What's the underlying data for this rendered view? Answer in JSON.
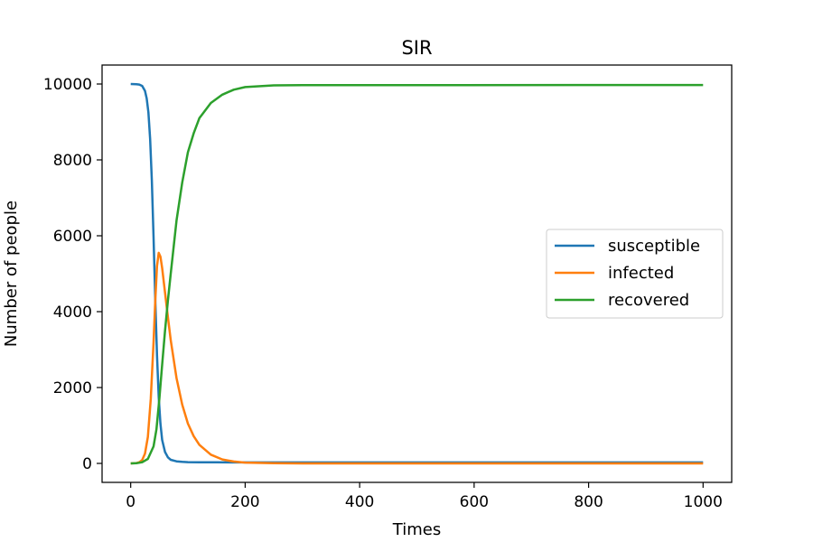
{
  "chart_data": {
    "type": "line",
    "title": "SIR",
    "xlabel": "Times",
    "ylabel": "Number of people",
    "xlim": [
      -50,
      1050
    ],
    "ylim": [
      -500,
      10500
    ],
    "xticks": [
      0,
      200,
      400,
      600,
      800,
      1000
    ],
    "yticks": [
      0,
      2000,
      4000,
      6000,
      8000,
      10000
    ],
    "xtick_labels": [
      "0",
      "200",
      "400",
      "600",
      "800",
      "1000"
    ],
    "ytick_labels": [
      "0",
      "2000",
      "4000",
      "6000",
      "8000",
      "10000"
    ],
    "grid": false,
    "legend_position": "center-right",
    "series": [
      {
        "name": "susceptible",
        "color": "#1f77b4",
        "x": [
          0,
          5,
          10,
          15,
          20,
          25,
          28,
          31,
          34,
          37,
          40,
          43,
          46,
          49,
          52,
          55,
          60,
          65,
          70,
          80,
          90,
          100,
          120,
          150,
          200,
          300,
          500,
          1000
        ],
        "y": [
          9999,
          9998,
          9995,
          9985,
          9950,
          9820,
          9620,
          9250,
          8550,
          7450,
          5950,
          4300,
          2850,
          1750,
          1050,
          620,
          300,
          160,
          95,
          55,
          40,
          33,
          30,
          28,
          27,
          27,
          27,
          27
        ]
      },
      {
        "name": "infected",
        "color": "#ff7f0e",
        "x": [
          0,
          10,
          15,
          20,
          25,
          30,
          35,
          40,
          43,
          46,
          49,
          52,
          55,
          60,
          65,
          70,
          80,
          90,
          100,
          110,
          120,
          140,
          160,
          180,
          200,
          250,
          300,
          400,
          1000
        ],
        "y": [
          1,
          10,
          30,
          90,
          260,
          700,
          1700,
          3200,
          4300,
          5200,
          5550,
          5450,
          5150,
          4500,
          3850,
          3250,
          2250,
          1550,
          1050,
          720,
          490,
          230,
          105,
          50,
          22,
          4,
          1,
          0,
          0
        ]
      },
      {
        "name": "recovered",
        "color": "#2ca02c",
        "x": [
          0,
          10,
          20,
          30,
          40,
          45,
          50,
          55,
          60,
          65,
          70,
          80,
          90,
          100,
          110,
          120,
          140,
          160,
          180,
          200,
          250,
          300,
          1000
        ],
        "y": [
          0,
          5,
          30,
          120,
          450,
          900,
          1700,
          2600,
          3500,
          4300,
          5000,
          6400,
          7400,
          8200,
          8700,
          9100,
          9500,
          9720,
          9850,
          9920,
          9965,
          9970,
          9973
        ]
      }
    ]
  }
}
